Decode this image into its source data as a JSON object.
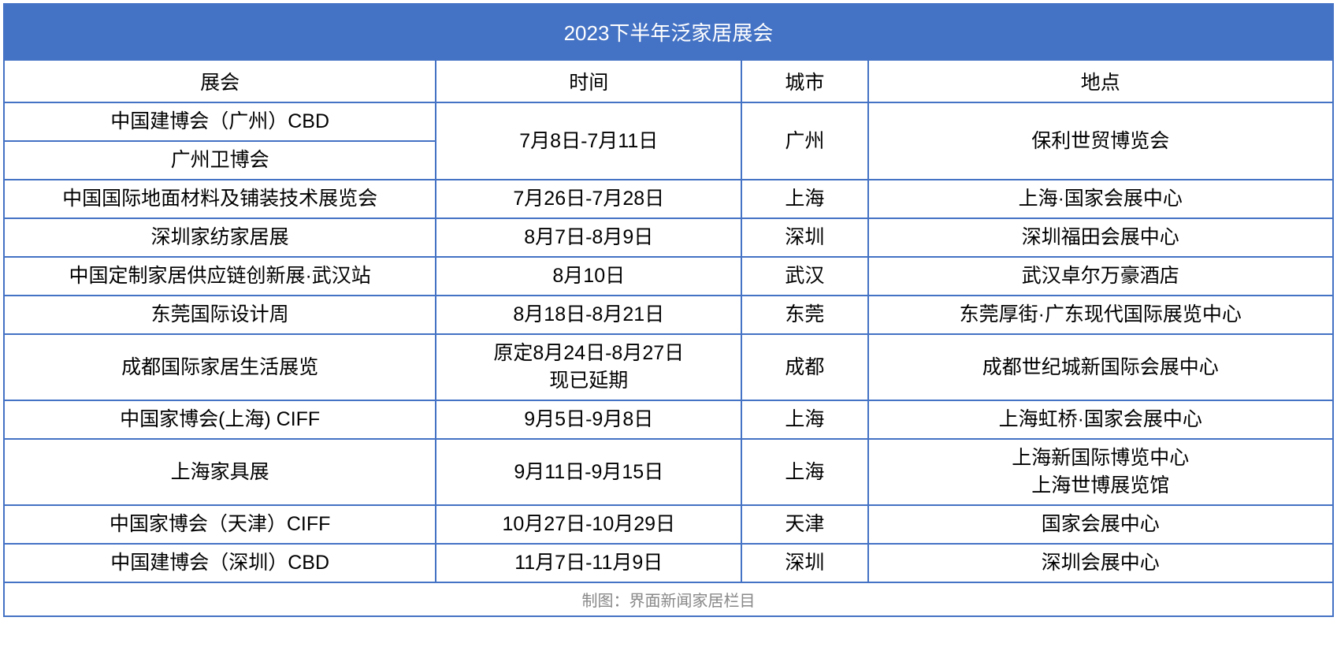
{
  "table": {
    "title": "2023下半年泛家居展会",
    "columns": [
      "展会",
      "时间",
      "城市",
      "地点"
    ],
    "column_widths_pct": [
      32.5,
      23,
      9.5,
      35
    ],
    "title_bg_color": "#4472c4",
    "title_text_color": "#ffffff",
    "border_color": "#4472c4",
    "cell_bg_color": "#ffffff",
    "cell_text_color": "#000000",
    "footer_text_color": "#888888",
    "title_fontsize": 26,
    "header_fontsize": 25,
    "cell_fontsize": 25,
    "footer_fontsize": 20,
    "rows": [
      {
        "exhibition": "中国建博会（广州）CBD",
        "time": "7月8日-7月11日",
        "city": "广州",
        "location": "保利世贸博览会",
        "rowspan_time": 2,
        "rowspan_city": 2,
        "rowspan_location": 2
      },
      {
        "exhibition": "广州卫博会"
      },
      {
        "exhibition": "中国国际地面材料及铺装技术展览会",
        "time": "7月26日-7月28日",
        "city": "上海",
        "location": "上海·国家会展中心"
      },
      {
        "exhibition": "深圳家纺家居展",
        "time": "8月7日-8月9日",
        "city": "深圳",
        "location": "深圳福田会展中心"
      },
      {
        "exhibition": "中国定制家居供应链创新展·武汉站",
        "time": "8月10日",
        "city": "武汉",
        "location": "武汉卓尔万豪酒店"
      },
      {
        "exhibition": "东莞国际设计周",
        "time": "8月18日-8月21日",
        "city": "东莞",
        "location": "东莞厚街·广东现代国际展览中心"
      },
      {
        "exhibition": "成都国际家居生活展览",
        "time": "原定8月24日-8月27日\n现已延期",
        "city": "成都",
        "location": "成都世纪城新国际会展中心"
      },
      {
        "exhibition": "中国家博会(上海) CIFF",
        "time": "9月5日-9月8日",
        "city": "上海",
        "location": "上海虹桥·国家会展中心"
      },
      {
        "exhibition": "上海家具展",
        "time": "9月11日-9月15日",
        "city": "上海",
        "location": "上海新国际博览中心\n上海世博展览馆"
      },
      {
        "exhibition": "中国家博会（天津）CIFF",
        "time": "10月27日-10月29日",
        "city": "天津",
        "location": "国家会展中心"
      },
      {
        "exhibition": "中国建博会（深圳）CBD",
        "time": "11月7日-11月9日",
        "city": "深圳",
        "location": "深圳会展中心"
      }
    ],
    "footer": "制图：界面新闻家居栏目"
  }
}
